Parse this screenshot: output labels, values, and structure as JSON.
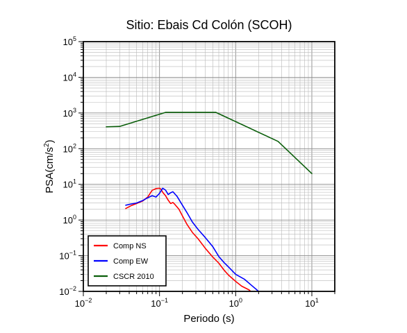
{
  "chart_data": {
    "type": "line",
    "title": "Sitio: Ebais Cd Colón (SCOH)",
    "xlabel": "Periodo (s)",
    "ylabel": {
      "prefix": "PSA(cm/s",
      "sup": "2",
      "suffix": ")"
    },
    "xscale": "log",
    "yscale": "log",
    "xlim": [
      0.01,
      20
    ],
    "ylim": [
      0.01,
      100000
    ],
    "grid": true,
    "legend_position": "bottom-left",
    "x_ticks": [
      {
        "base": "10",
        "exp": "−2",
        "value": 0.01
      },
      {
        "base": "10",
        "exp": "−1",
        "value": 0.1
      },
      {
        "base": "10",
        "exp": "0",
        "value": 1
      },
      {
        "base": "10",
        "exp": "1",
        "value": 10
      }
    ],
    "y_ticks": [
      {
        "base": "10",
        "exp": "−2",
        "value": 0.01
      },
      {
        "base": "10",
        "exp": "−1",
        "value": 0.1
      },
      {
        "base": "10",
        "exp": "0",
        "value": 1
      },
      {
        "base": "10",
        "exp": "1",
        "value": 10
      },
      {
        "base": "10",
        "exp": "2",
        "value": 100
      },
      {
        "base": "10",
        "exp": "3",
        "value": 1000
      },
      {
        "base": "10",
        "exp": "4",
        "value": 10000
      },
      {
        "base": "10",
        "exp": "5",
        "value": 100000
      }
    ],
    "series": [
      {
        "name": "Comp NS",
        "color": "#ff0000",
        "x": [
          0.036,
          0.042,
          0.05,
          0.06,
          0.07,
          0.08,
          0.09,
          0.1,
          0.105,
          0.11,
          0.12,
          0.13,
          0.14,
          0.15,
          0.16,
          0.18,
          0.2,
          0.23,
          0.27,
          0.32,
          0.4,
          0.5,
          0.6,
          0.7,
          0.8,
          1.0,
          1.2,
          1.5,
          1.7,
          2.0
        ],
        "y": [
          2.1,
          2.5,
          2.9,
          3.4,
          4.4,
          6.8,
          7.6,
          7.8,
          7.2,
          6.0,
          4.8,
          3.6,
          2.9,
          3.1,
          2.7,
          2.0,
          1.3,
          0.75,
          0.45,
          0.3,
          0.16,
          0.092,
          0.062,
          0.04,
          0.029,
          0.019,
          0.014,
          0.011,
          0.0085,
          0.0072
        ]
      },
      {
        "name": "Comp EW",
        "color": "#0000ff",
        "x": [
          0.036,
          0.042,
          0.05,
          0.06,
          0.07,
          0.08,
          0.09,
          0.1,
          0.11,
          0.12,
          0.13,
          0.14,
          0.15,
          0.17,
          0.2,
          0.23,
          0.27,
          0.32,
          0.4,
          0.5,
          0.6,
          0.7,
          0.85,
          1.0,
          1.3,
          1.6,
          1.9,
          2.2
        ],
        "y": [
          2.6,
          2.8,
          3.0,
          3.5,
          4.2,
          4.8,
          4.4,
          5.6,
          7.8,
          6.9,
          5.2,
          5.8,
          6.2,
          4.6,
          2.6,
          1.6,
          0.88,
          0.55,
          0.32,
          0.18,
          0.095,
          0.065,
          0.043,
          0.03,
          0.022,
          0.015,
          0.011,
          0.008
        ]
      },
      {
        "name": "CSCR 2010",
        "color": "#0a5e0a",
        "x": [
          0.02,
          0.03,
          0.12,
          0.55,
          3.6,
          10
        ],
        "y": [
          410,
          420,
          1040,
          1040,
          160,
          20
        ]
      }
    ]
  }
}
